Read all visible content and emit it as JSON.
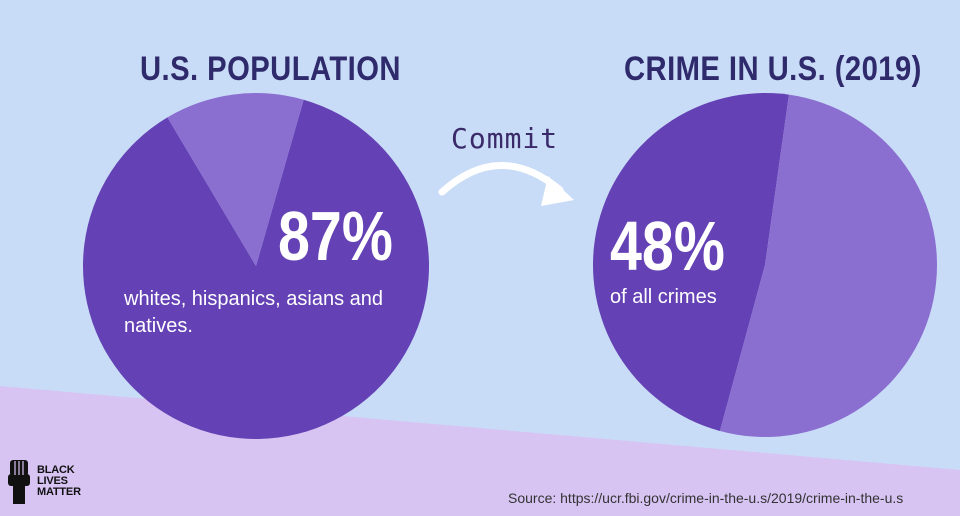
{
  "chart_data": [
    {
      "type": "pie",
      "title": "U.S. POPULATION",
      "slices": [
        {
          "label": "whites, hispanics, asians and natives.",
          "value": 87,
          "color": "#6441b4"
        },
        {
          "label": "",
          "value": 13,
          "color": "#8a6fd0"
        }
      ],
      "callout_value": "87%",
      "callout_text": "whites, hispanics, asians and natives."
    },
    {
      "type": "pie",
      "title": "CRIME IN U.S. (2019)",
      "slices": [
        {
          "label": "of all crimes",
          "value": 48,
          "color": "#6441b4"
        },
        {
          "label": "",
          "value": 52,
          "color": "#8a6fd0"
        }
      ],
      "callout_value": "48%",
      "callout_text": "of all crimes"
    }
  ],
  "connector": {
    "label": "Commit"
  },
  "logo": {
    "lines": [
      "BLACK",
      "LIVES",
      "MATTER"
    ]
  },
  "source_text": "Source: https://ucr.fbi.gov/crime-in-the-u.s/2019/crime-in-the-u.s",
  "colors": {
    "background": "#c9dcf7",
    "band": "#d7c4f3",
    "title": "#2f2a6b"
  }
}
